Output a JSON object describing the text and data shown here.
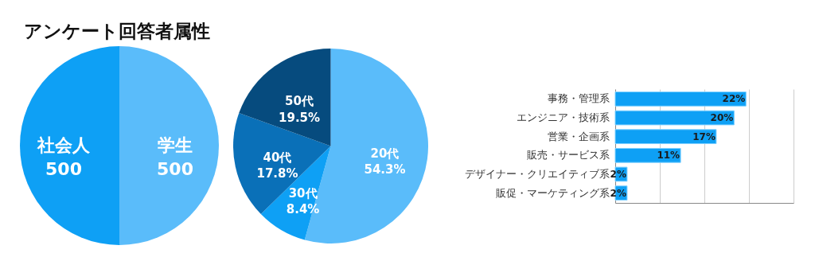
{
  "chart_data": [
    {
      "type": "pie",
      "title": "アンケート回答者属性",
      "categories": [
        "学生",
        "社会人"
      ],
      "values": [
        500,
        500
      ],
      "colors": [
        "#5abcfa",
        "#0ea0f5"
      ],
      "data_labels": true
    },
    {
      "type": "pie",
      "categories": [
        "20代",
        "30代",
        "40代",
        "50代"
      ],
      "values": [
        54.3,
        8.4,
        17.8,
        19.5
      ],
      "value_labels": [
        "54.3%",
        "8.4%",
        "17.8%",
        "19.5%"
      ],
      "colors": [
        "#5abcfa",
        "#0ea0f5",
        "#0a70b8",
        "#064b7e"
      ]
    },
    {
      "type": "bar",
      "orientation": "horizontal",
      "categories": [
        "事務・管理系",
        "エンジニア・技術系",
        "営業・企画系",
        "販売・サービス系",
        "デザイナー・クリエイティブ系",
        "販促・マーケティング系"
      ],
      "values": [
        22,
        20,
        17,
        11,
        2,
        2
      ],
      "value_labels": [
        "22%",
        "20%",
        "17%",
        "11%",
        "2%",
        "2%"
      ],
      "color": "#0ea0f5",
      "xlim": [
        0,
        30
      ],
      "xticks": [
        {
          "value": 0,
          "label": null
        },
        {
          "value": 7.5,
          "label": null
        },
        {
          "value": 15,
          "label": null
        },
        {
          "value": 22.5,
          "label": null
        },
        {
          "value": 30,
          "label": null
        }
      ],
      "grid": "x",
      "tick_labels": "y"
    }
  ]
}
